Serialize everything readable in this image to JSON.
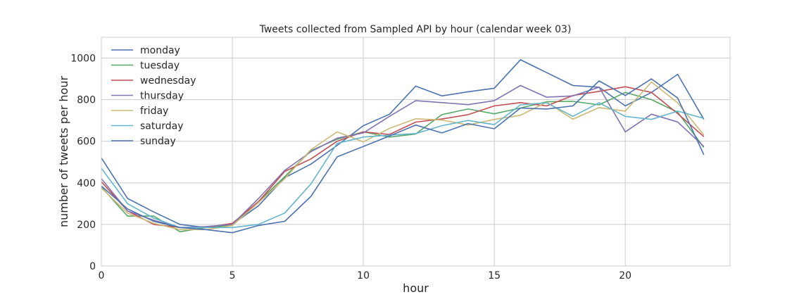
{
  "chart_data": {
    "type": "line",
    "title": "Tweets collected from Sampled API by hour (calendar week 03)",
    "xlabel": "hour",
    "ylabel": "number of tweets per hour",
    "xlim": [
      0,
      24
    ],
    "ylim": [
      0,
      1100
    ],
    "xticks": [
      0,
      5,
      10,
      15,
      20
    ],
    "yticks": [
      0,
      200,
      400,
      600,
      800,
      1000
    ],
    "grid": true,
    "legend_position": "top-left",
    "x": [
      0,
      1,
      2,
      3,
      4,
      5,
      6,
      7,
      8,
      9,
      10,
      11,
      12,
      13,
      14,
      15,
      16,
      17,
      18,
      19,
      20,
      21,
      22,
      23
    ],
    "series": [
      {
        "name": "monday",
        "color": "#4c72b0",
        "values": [
          520,
          325,
          260,
          200,
          185,
          200,
          290,
          425,
          490,
          580,
          675,
          730,
          865,
          818,
          838,
          855,
          992,
          930,
          868,
          860,
          770,
          835,
          922,
          705
        ]
      },
      {
        "name": "tuesday",
        "color": "#55a868",
        "values": [
          380,
          240,
          240,
          165,
          185,
          195,
          310,
          430,
          555,
          610,
          645,
          620,
          635,
          728,
          755,
          732,
          760,
          790,
          792,
          775,
          835,
          800,
          740,
          570
        ]
      },
      {
        "name": "wednesday",
        "color": "#c44e52",
        "values": [
          405,
          265,
          200,
          185,
          185,
          205,
          310,
          455,
          515,
          600,
          645,
          633,
          692,
          707,
          728,
          770,
          786,
          770,
          820,
          840,
          862,
          835,
          733,
          622
        ]
      },
      {
        "name": "thursday",
        "color": "#8172b2",
        "values": [
          420,
          265,
          220,
          185,
          190,
          200,
          325,
          460,
          550,
          615,
          640,
          720,
          795,
          786,
          776,
          795,
          868,
          812,
          818,
          860,
          645,
          730,
          693,
          575
        ]
      },
      {
        "name": "friday",
        "color": "#ccb974",
        "values": [
          375,
          255,
          205,
          175,
          175,
          195,
          305,
          420,
          560,
          645,
          597,
          662,
          708,
          702,
          678,
          705,
          725,
          788,
          706,
          762,
          745,
          885,
          785,
          630
        ]
      },
      {
        "name": "saturday",
        "color": "#64b5cd",
        "values": [
          470,
          300,
          230,
          185,
          185,
          185,
          200,
          255,
          395,
          590,
          620,
          630,
          637,
          675,
          700,
          680,
          775,
          785,
          720,
          785,
          720,
          705,
          745,
          710
        ]
      },
      {
        "name": "sunday",
        "color": "#4c72b0",
        "values": [
          385,
          275,
          215,
          185,
          175,
          160,
          195,
          215,
          335,
          525,
          575,
          625,
          678,
          640,
          685,
          660,
          760,
          755,
          770,
          890,
          820,
          900,
          808,
          535
        ]
      }
    ]
  }
}
